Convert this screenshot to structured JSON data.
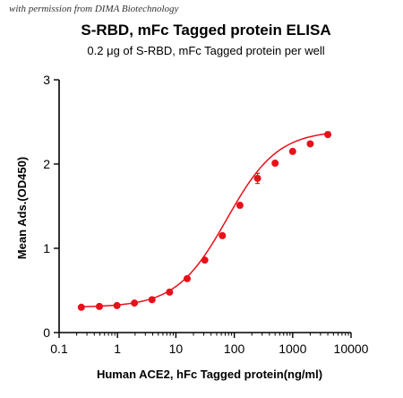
{
  "watermark": "with permission from DIMA Biotechnology",
  "chart_data": {
    "type": "scatter",
    "title": "S-RBD, mFc Tagged protein ELISA",
    "subtitle": "0.2 μg of S-RBD, mFc Tagged protein per well",
    "xlabel": "Human ACE2, hFc Tagged protein(ng/ml)",
    "ylabel": "Mean Ads.(OD450)",
    "xscale": "log",
    "xlim": [
      0.1,
      10000
    ],
    "ylim": [
      0,
      3
    ],
    "xticks": [
      {
        "value": 0.1,
        "label": "0.1"
      },
      {
        "value": 1,
        "label": "1"
      },
      {
        "value": 10,
        "label": "10"
      },
      {
        "value": 100,
        "label": "100"
      },
      {
        "value": 1000,
        "label": "1000"
      },
      {
        "value": 10000,
        "label": "10000"
      }
    ],
    "yticks": [
      {
        "value": 0,
        "label": "0"
      },
      {
        "value": 1,
        "label": "1"
      },
      {
        "value": 2,
        "label": "2"
      },
      {
        "value": 3,
        "label": "3"
      }
    ],
    "grid": false,
    "color": "#e8101a",
    "series": [
      {
        "x": [
          0.24,
          0.49,
          0.98,
          1.95,
          3.9,
          7.8,
          15.6,
          31.25,
          62.5,
          125,
          250,
          500,
          1000,
          2000,
          4000
        ],
        "y": [
          0.3,
          0.31,
          0.32,
          0.35,
          0.39,
          0.48,
          0.64,
          0.86,
          1.15,
          1.51,
          1.83,
          2.01,
          2.15,
          2.24,
          2.35
        ],
        "err": [
          0.01,
          0.01,
          0.01,
          0.01,
          0.01,
          0.01,
          0.02,
          0.02,
          0.02,
          0.03,
          0.06,
          0.03,
          0.03,
          0.02,
          0.03
        ]
      }
    ],
    "fit": {
      "model": "4PL",
      "bottom": 0.3,
      "top": 2.4,
      "ec50": 75,
      "hill": 1.0
    }
  }
}
